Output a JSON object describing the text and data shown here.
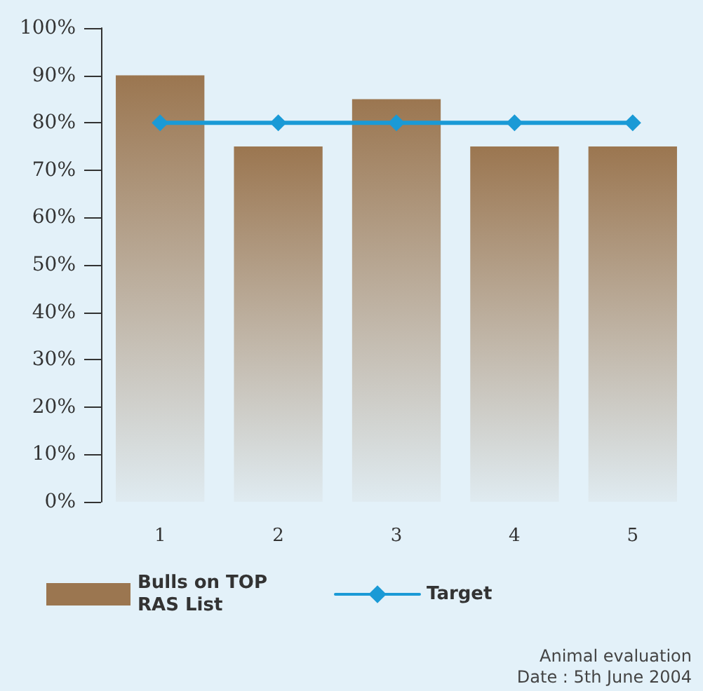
{
  "chart_data": {
    "type": "bar",
    "categories": [
      "1",
      "2",
      "3",
      "4",
      "5"
    ],
    "series": [
      {
        "name": "Bulls on TOP RAS List",
        "color": "#9b7650",
        "values": [
          90,
          75,
          85,
          75,
          75
        ]
      },
      {
        "name": "Target",
        "type": "line",
        "color": "#1a9ad6",
        "values": [
          80,
          80,
          80,
          80,
          80
        ]
      }
    ],
    "ylim": [
      0,
      100
    ],
    "yticks": [
      {
        "value": 0,
        "label": "0%"
      },
      {
        "value": 10,
        "label": "10%"
      },
      {
        "value": 20,
        "label": "20%"
      },
      {
        "value": 30,
        "label": "30%"
      },
      {
        "value": 40,
        "label": "40%"
      },
      {
        "value": 50,
        "label": "50%"
      },
      {
        "value": 60,
        "label": "60%"
      },
      {
        "value": 70,
        "label": "70%"
      },
      {
        "value": 80,
        "label": "80%"
      },
      {
        "value": 90,
        "label": "90%"
      },
      {
        "value": 100,
        "label": "100%"
      }
    ],
    "grid": false,
    "legend": "bottom",
    "marker": "diamond",
    "line_style": "solid",
    "annotations": [
      "Animal evaluation",
      "Date : 5th June 2004"
    ]
  }
}
